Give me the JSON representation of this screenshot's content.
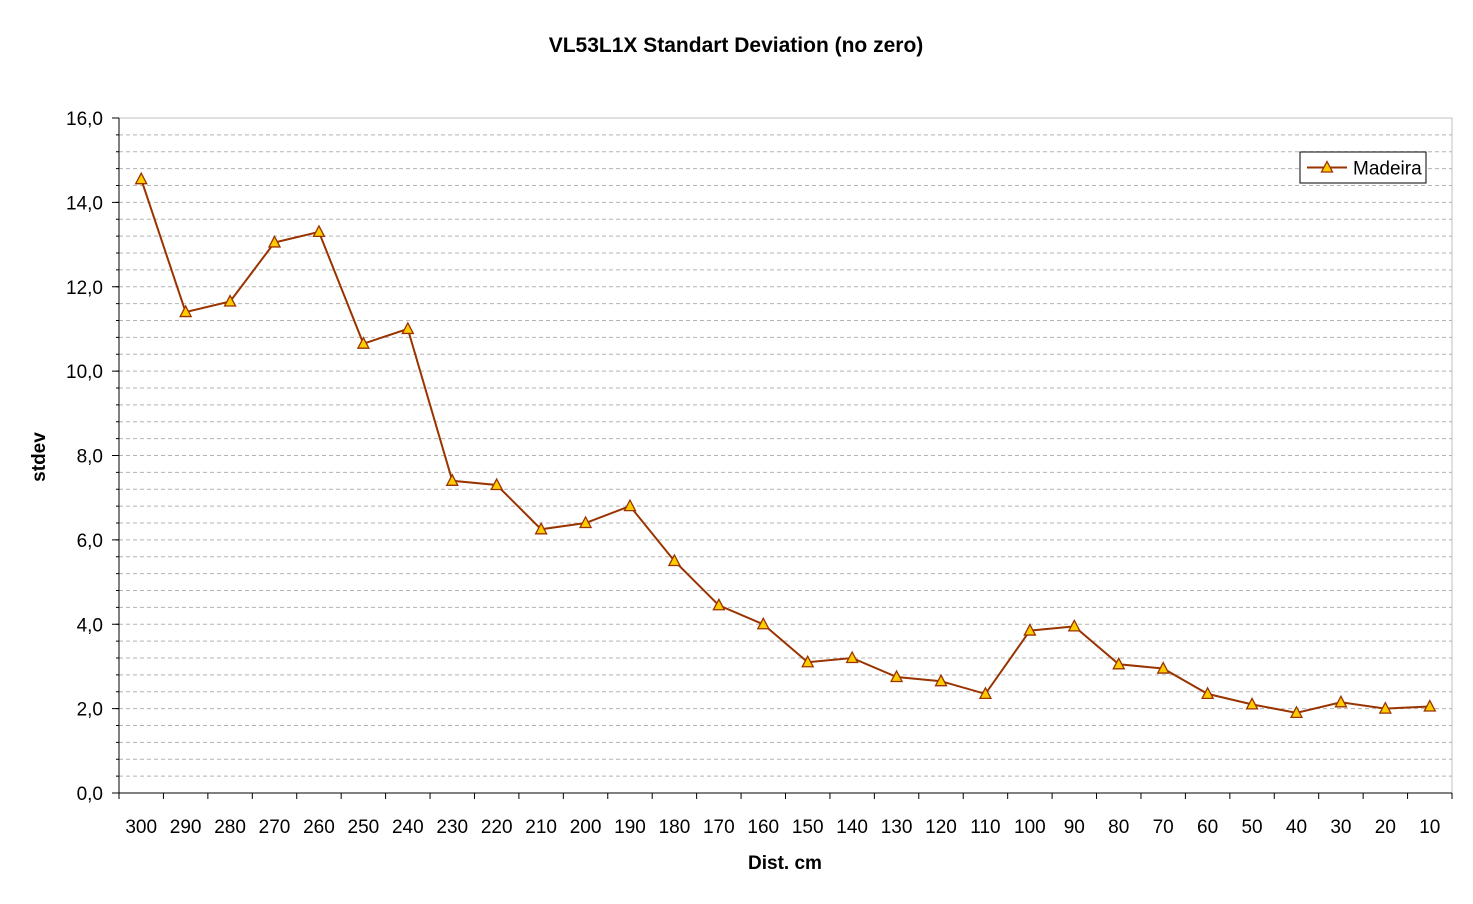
{
  "chart_data": {
    "type": "line",
    "title": "VL53L1X Standart Deviation (no zero)",
    "xlabel": "Dist. cm",
    "ylabel": "stdev",
    "ylim": [
      0,
      16
    ],
    "y_ticks": [
      "0,0",
      "2,0",
      "4,0",
      "6,0",
      "8,0",
      "10,0",
      "12,0",
      "14,0",
      "16,0"
    ],
    "grid": "horizontal dashed minor lines",
    "legend_position": "top-right",
    "categories": [
      "300",
      "290",
      "280",
      "270",
      "260",
      "250",
      "240",
      "230",
      "220",
      "210",
      "200",
      "190",
      "180",
      "170",
      "160",
      "150",
      "140",
      "130",
      "120",
      "110",
      "100",
      "90",
      "80",
      "70",
      "60",
      "50",
      "40",
      "30",
      "20",
      "10"
    ],
    "series": [
      {
        "name": "Madeira",
        "line_color": "#993300",
        "marker": "triangle",
        "marker_fill": "#ffcc00",
        "values": [
          14.55,
          11.4,
          11.65,
          13.05,
          13.3,
          10.65,
          11.0,
          7.4,
          7.3,
          6.25,
          6.4,
          6.8,
          5.5,
          4.45,
          4.0,
          3.1,
          3.2,
          2.75,
          2.65,
          2.35,
          3.85,
          3.95,
          3.05,
          2.95,
          2.35,
          2.1,
          1.9,
          2.15,
          2.0,
          2.05
        ]
      }
    ]
  }
}
